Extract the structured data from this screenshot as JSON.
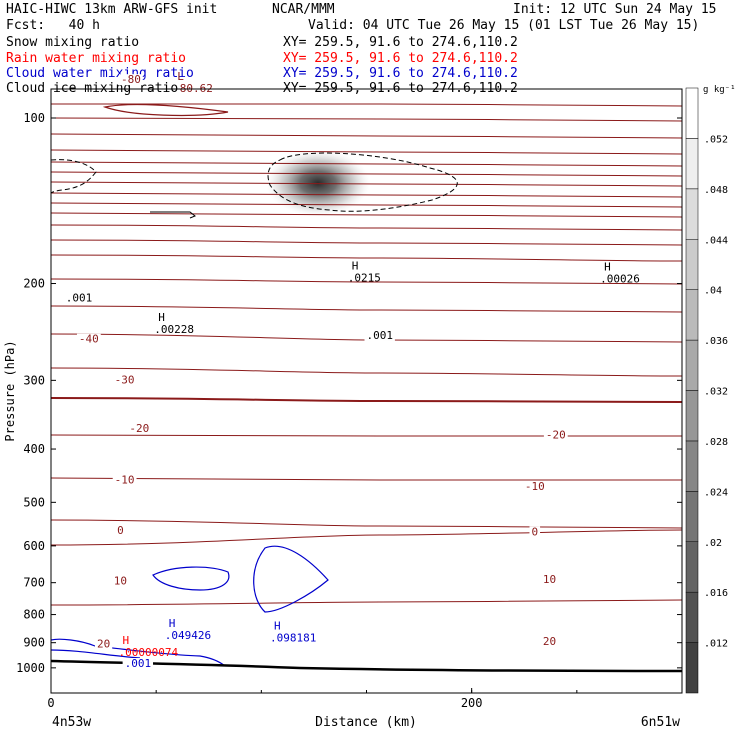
{
  "header": {
    "left_line1": "HAIC-HIWC 13km ARW-GFS init",
    "center_line1": "NCAR/MMM",
    "right_line1": "Init: 12 UTC Sun 24 May 15",
    "left_line2": "Fcst:   40 h",
    "right_line2": "Valid: 04 UTC Tue 26 May 15 (01 LST Tue 26 May 15)"
  },
  "fields": [
    {
      "name": "Snow mixing ratio",
      "xy": "XY= 259.5, 91.6 to 274.6,110.2",
      "color": "#000000"
    },
    {
      "name": "Rain water mixing ratio",
      "xy": "XY= 259.5, 91.6 to 274.6,110.2",
      "color": "#ff0000"
    },
    {
      "name": "Cloud water mixing ratio",
      "xy": "XY= 259.5, 91.6 to 274.6,110.2",
      "color": "#0000cc"
    },
    {
      "name": "Cloud ice mixing ratio",
      "xy": "XY= 259.5, 91.6 to 274.6,110.2",
      "color": "#000000"
    }
  ],
  "chart_data": {
    "type": "contour",
    "xlabel": "Distance (km)",
    "ylabel": "Pressure (hPa)",
    "xlim": [
      0,
      300
    ],
    "ylim": [
      1050,
      45
    ],
    "x_ticks": [
      "0",
      "200"
    ],
    "x_tick_values": [
      0,
      200
    ],
    "y_ticks": [
      "100",
      "200",
      "300",
      "400",
      "500",
      "600",
      "700",
      "800",
      "900",
      "1000"
    ],
    "y_tick_values": [
      100,
      200,
      300,
      400,
      500,
      600,
      700,
      800,
      900,
      1000
    ],
    "left_endpoint": "4n53w",
    "right_endpoint": "6n51w",
    "colorbar": {
      "unit": "g kg⁻¹",
      "labels": [
        ".012",
        ".016",
        ".02",
        ".024",
        ".028",
        ".032",
        ".036",
        ".04",
        ".044",
        ".048",
        ".052"
      ],
      "values": [
        0.012,
        0.016,
        0.02,
        0.024,
        0.028,
        0.032,
        0.036,
        0.04,
        0.044,
        0.048,
        0.052
      ]
    },
    "temperature_labels": [
      {
        "text": "-80",
        "x": 38,
        "p": 85
      },
      {
        "text": "-40",
        "x": 18,
        "p": 252
      },
      {
        "text": "-30",
        "x": 35,
        "p": 299
      },
      {
        "text": "-20",
        "x": 42,
        "p": 366
      },
      {
        "text": "-20",
        "x": 240,
        "p": 376
      },
      {
        "text": "-10",
        "x": 35,
        "p": 454
      },
      {
        "text": "-10",
        "x": 230,
        "p": 467
      },
      {
        "text": "0",
        "x": 33,
        "p": 561
      },
      {
        "text": "0",
        "x": 230,
        "p": 565
      },
      {
        "text": "10",
        "x": 33,
        "p": 694
      },
      {
        "text": "10",
        "x": 237,
        "p": 689
      },
      {
        "text": "20",
        "x": 25,
        "p": 904
      },
      {
        "text": "20",
        "x": 237,
        "p": 894
      }
    ],
    "extrema": [
      {
        "type": "L",
        "value": "-80.62",
        "x": 60,
        "p": 86,
        "color": "#8b1a1a"
      },
      {
        "type": "H",
        "value": ".0215",
        "x": 143,
        "p": 190,
        "color": "#000000"
      },
      {
        "type": "H",
        "value": ".00026",
        "x": 263,
        "p": 191,
        "color": "#000000"
      },
      {
        "type": "H",
        "value": ".00228",
        "x": 51,
        "p": 236,
        "color": "#000000"
      },
      {
        "type": "H",
        "value": ".049426",
        "x": 56,
        "p": 849,
        "color": "#0000cc"
      },
      {
        "type": "H",
        "value": ".098181",
        "x": 106,
        "p": 858,
        "color": "#0000cc"
      },
      {
        "type": "H",
        "value": ".00000074",
        "x": 34,
        "p": 913,
        "color": "#ff0000"
      }
    ],
    "contour_labels": [
      {
        "text": ".001",
        "x": 7,
        "p": 212,
        "color": "#000000"
      },
      {
        "text": ".001",
        "x": 150,
        "p": 248,
        "color": "#000000"
      },
      {
        "text": ".001",
        "x": 35,
        "p": 980,
        "color": "#0000cc"
      }
    ],
    "snow_max": 0.0215
  }
}
